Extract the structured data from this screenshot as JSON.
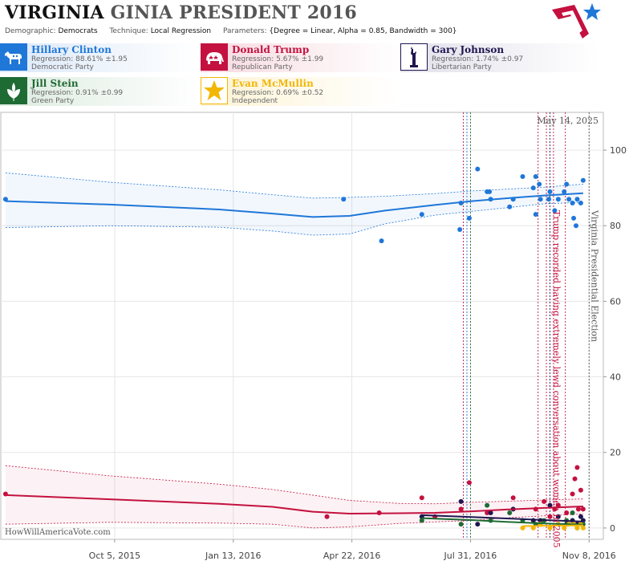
{
  "header": {
    "title_part1": "VIRGINIA",
    "title_part2": "GINIA PRESIDENT 2016",
    "demographic_label": "Demographic:",
    "demographic_value": "Democrats",
    "technique_label": "Technique:",
    "technique_value": "Local Regression",
    "parameters_label": "Parameters:",
    "parameters_value": "{Degree = Linear, Alpha = 0.85, Bandwidth = 300}"
  },
  "candidates": [
    {
      "name": "Hillary Clinton",
      "regression": "Regression: 88.61% ±1.95",
      "party": "Democratic Party",
      "color": "#1f77d8",
      "bg": "#dbe8f8",
      "icon": "donkey-icon"
    },
    {
      "name": "Donald Trump",
      "regression": "Regression: 5.67% ±1.99",
      "party": "Republican Party",
      "color": "#c4113f",
      "bg": "#f6d9e0",
      "icon": "elephant-icon"
    },
    {
      "name": "Gary Johnson",
      "regression": "Regression: 1.74% ±0.97",
      "party": "Libertarian Party",
      "color": "#1f1650",
      "bg": "#e2e0ea",
      "icon": "liberty-statue-icon"
    },
    {
      "name": "Jill Stein",
      "regression": "Regression: 0.91% ±0.99",
      "party": "Green Party",
      "color": "#1e6b34",
      "bg": "#dcebdf",
      "icon": "leaf-icon"
    },
    {
      "name": "Evan McMullin",
      "regression": "Regression: 0.69% ±0.52",
      "party": "Independent",
      "color": "#f2b705",
      "bg": "#fdf3d4",
      "icon": "star-icon"
    }
  ],
  "chart_data": {
    "type": "scatter",
    "date_label": "May 14, 2025",
    "watermark": "HowWillAmericaVote.com",
    "x_ticks": [
      "Oct 5, 2015",
      "Jan 13, 2016",
      "Apr 22, 2016",
      "Jul 31, 2016",
      "Nov 8, 2016"
    ],
    "xlim": [
      "2015-07-01",
      "2016-11-20"
    ],
    "y_ticks": [
      0,
      20,
      40,
      60,
      80,
      100
    ],
    "ylim": [
      -3,
      110
    ],
    "grid": true,
    "annotations": [
      {
        "date": "2016-10-07",
        "text": "Trump recorded having extremely lewd conversation about women in 2005",
        "color": "#c4113f"
      },
      {
        "date": "2016-11-08",
        "text": "Virginia Presidential Election",
        "color": "#555555"
      }
    ],
    "event_lines": [
      {
        "date": "2016-07-25",
        "color": "#c4113f"
      },
      {
        "date": "2016-07-28",
        "color": "#1f77d8"
      },
      {
        "date": "2016-07-31",
        "color": "#1e6b34"
      },
      {
        "date": "2016-09-26",
        "color": "#c4113f"
      },
      {
        "date": "2016-10-03",
        "color": "#c4113f"
      },
      {
        "date": "2016-10-06",
        "color": "#1f1650"
      },
      {
        "date": "2016-10-09",
        "color": "#c4113f"
      },
      {
        "date": "2016-10-19",
        "color": "#c4113f"
      },
      {
        "date": "2016-11-08",
        "color": "#555555"
      }
    ],
    "series": [
      {
        "name": "Hillary Clinton",
        "color": "#1f77d8",
        "points": [
          [
            "2015-07-05",
            87
          ],
          [
            "2016-04-15",
            87
          ],
          [
            "2016-05-17",
            76
          ],
          [
            "2016-06-20",
            83
          ],
          [
            "2016-07-22",
            79
          ],
          [
            "2016-07-23",
            86
          ],
          [
            "2016-07-30",
            82
          ],
          [
            "2016-08-06",
            95
          ],
          [
            "2016-08-14",
            89
          ],
          [
            "2016-08-16",
            89
          ],
          [
            "2016-08-17",
            87
          ],
          [
            "2016-09-02",
            85
          ],
          [
            "2016-09-05",
            87
          ],
          [
            "2016-09-13",
            93
          ],
          [
            "2016-09-22",
            90
          ],
          [
            "2016-09-24",
            93
          ],
          [
            "2016-09-24",
            83
          ],
          [
            "2016-09-27",
            91
          ],
          [
            "2016-09-28",
            87
          ],
          [
            "2016-10-05",
            87
          ],
          [
            "2016-10-06",
            89
          ],
          [
            "2016-10-10",
            84
          ],
          [
            "2016-10-13",
            87
          ],
          [
            "2016-10-18",
            89
          ],
          [
            "2016-10-20",
            91
          ],
          [
            "2016-10-22",
            87
          ],
          [
            "2016-10-25",
            86
          ],
          [
            "2016-10-26",
            82
          ],
          [
            "2016-10-28",
            80
          ],
          [
            "2016-10-29",
            87
          ],
          [
            "2016-11-01",
            86
          ],
          [
            "2016-11-03",
            92
          ]
        ],
        "trend": [
          [
            "2015-07-05",
            86.5
          ],
          [
            "2015-10-01",
            85.6
          ],
          [
            "2016-01-01",
            84.3
          ],
          [
            "2016-02-15",
            83.2
          ],
          [
            "2016-03-20",
            82.3
          ],
          [
            "2016-04-20",
            82.6
          ],
          [
            "2016-05-20",
            84
          ],
          [
            "2016-07-01",
            85.5
          ],
          [
            "2016-08-01",
            86.5
          ],
          [
            "2016-09-01",
            87.3
          ],
          [
            "2016-10-01",
            88
          ],
          [
            "2016-11-03",
            88.6
          ]
        ],
        "upper": [
          [
            "2015-07-05",
            94
          ],
          [
            "2015-10-01",
            91.5
          ],
          [
            "2016-01-01",
            89.5
          ],
          [
            "2016-02-15",
            88.2
          ],
          [
            "2016-03-20",
            87.3
          ],
          [
            "2016-04-20",
            87.5
          ],
          [
            "2016-05-20",
            87.8
          ],
          [
            "2016-07-01",
            88.5
          ],
          [
            "2016-08-01",
            89.2
          ],
          [
            "2016-09-01",
            89.7
          ],
          [
            "2016-10-01",
            90.2
          ],
          [
            "2016-11-03",
            91
          ]
        ],
        "lower": [
          [
            "2015-07-05",
            79.5
          ],
          [
            "2015-10-01",
            80
          ],
          [
            "2016-01-01",
            79.6
          ],
          [
            "2016-02-15",
            78.6
          ],
          [
            "2016-03-20",
            77.5
          ],
          [
            "2016-04-20",
            77.8
          ],
          [
            "2016-05-20",
            80.5
          ],
          [
            "2016-07-01",
            82.8
          ],
          [
            "2016-08-01",
            83.8
          ],
          [
            "2016-09-01",
            84.8
          ],
          [
            "2016-10-01",
            85.8
          ],
          [
            "2016-11-03",
            86.2
          ]
        ]
      },
      {
        "name": "Donald Trump",
        "color": "#c4113f",
        "points": [
          [
            "2015-07-05",
            9
          ],
          [
            "2016-04-01",
            3
          ],
          [
            "2016-05-15",
            4
          ],
          [
            "2016-06-20",
            8
          ],
          [
            "2016-07-01",
            3
          ],
          [
            "2016-07-23",
            5
          ],
          [
            "2016-07-30",
            12
          ],
          [
            "2016-08-14",
            4
          ],
          [
            "2016-09-05",
            8
          ],
          [
            "2016-09-24",
            5
          ],
          [
            "2016-10-01",
            7
          ],
          [
            "2016-10-06",
            3
          ],
          [
            "2016-10-10",
            5
          ],
          [
            "2016-10-13",
            6
          ],
          [
            "2016-10-20",
            4
          ],
          [
            "2016-10-25",
            9
          ],
          [
            "2016-10-27",
            13
          ],
          [
            "2016-10-29",
            16
          ],
          [
            "2016-10-30",
            5
          ],
          [
            "2016-11-01",
            10
          ],
          [
            "2016-11-03",
            5
          ]
        ],
        "trend": [
          [
            "2015-07-05",
            8.7
          ],
          [
            "2015-10-01",
            7.6
          ],
          [
            "2016-01-01",
            6.4
          ],
          [
            "2016-02-15",
            5.6
          ],
          [
            "2016-03-20",
            4.3
          ],
          [
            "2016-04-20",
            3.8
          ],
          [
            "2016-06-01",
            3.9
          ],
          [
            "2016-07-01",
            4
          ],
          [
            "2016-08-01",
            4.4
          ],
          [
            "2016-09-01",
            4.9
          ],
          [
            "2016-10-01",
            5.3
          ],
          [
            "2016-11-03",
            5.7
          ]
        ],
        "upper": [
          [
            "2015-07-05",
            16.5
          ],
          [
            "2015-10-01",
            13.8
          ],
          [
            "2016-01-01",
            11.6
          ],
          [
            "2016-02-15",
            10.2
          ],
          [
            "2016-03-20",
            8.7
          ],
          [
            "2016-04-20",
            7.3
          ],
          [
            "2016-06-01",
            6.5
          ],
          [
            "2016-07-01",
            6.4
          ],
          [
            "2016-08-01",
            6.8
          ],
          [
            "2016-09-01",
            7.1
          ],
          [
            "2016-10-01",
            7.4
          ],
          [
            "2016-11-03",
            7.7
          ]
        ],
        "lower": [
          [
            "2015-07-05",
            1
          ],
          [
            "2015-10-01",
            1.5
          ],
          [
            "2016-01-01",
            1.3
          ],
          [
            "2016-02-15",
            1
          ],
          [
            "2016-03-20",
            0
          ],
          [
            "2016-04-20",
            0.3
          ],
          [
            "2016-06-01",
            1.2
          ],
          [
            "2016-07-01",
            1.6
          ],
          [
            "2016-08-01",
            2
          ],
          [
            "2016-09-01",
            2.7
          ],
          [
            "2016-10-01",
            3.2
          ],
          [
            "2016-11-03",
            3.7
          ]
        ]
      },
      {
        "name": "Gary Johnson",
        "color": "#1f1650",
        "points": [
          [
            "2016-06-20",
            3
          ],
          [
            "2016-07-23",
            7
          ],
          [
            "2016-08-06",
            1
          ],
          [
            "2016-08-17",
            4
          ],
          [
            "2016-09-05",
            5
          ],
          [
            "2016-09-22",
            2
          ],
          [
            "2016-09-28",
            2
          ],
          [
            "2016-10-06",
            6
          ],
          [
            "2016-10-13",
            3
          ],
          [
            "2016-10-20",
            1
          ],
          [
            "2016-10-25",
            2
          ],
          [
            "2016-10-29",
            1
          ],
          [
            "2016-11-01",
            3
          ],
          [
            "2016-11-03",
            2
          ]
        ],
        "trend": [
          [
            "2016-06-20",
            3.4
          ],
          [
            "2016-08-01",
            2.9
          ],
          [
            "2016-09-01",
            2.5
          ],
          [
            "2016-10-01",
            2.1
          ],
          [
            "2016-11-03",
            1.7
          ]
        ]
      },
      {
        "name": "Jill Stein",
        "color": "#1e6b34",
        "points": [
          [
            "2016-06-20",
            2
          ],
          [
            "2016-07-23",
            1
          ],
          [
            "2016-08-14",
            6
          ],
          [
            "2016-08-17",
            2
          ],
          [
            "2016-09-02",
            4
          ],
          [
            "2016-09-13",
            2
          ],
          [
            "2016-09-24",
            1
          ],
          [
            "2016-10-01",
            2
          ],
          [
            "2016-10-13",
            1
          ],
          [
            "2016-10-20",
            2
          ],
          [
            "2016-10-25",
            4
          ],
          [
            "2016-10-29",
            0
          ],
          [
            "2016-11-03",
            1
          ]
        ],
        "trend": [
          [
            "2016-06-20",
            2.6
          ],
          [
            "2016-08-01",
            2.1
          ],
          [
            "2016-09-01",
            1.6
          ],
          [
            "2016-10-01",
            1.2
          ],
          [
            "2016-11-03",
            0.9
          ]
        ]
      },
      {
        "name": "Evan McMullin",
        "color": "#f2b705",
        "points": [
          [
            "2016-09-13",
            0
          ],
          [
            "2016-09-22",
            0
          ],
          [
            "2016-09-28",
            1
          ],
          [
            "2016-10-06",
            0
          ],
          [
            "2016-10-13",
            1
          ],
          [
            "2016-10-18",
            0
          ],
          [
            "2016-10-22",
            1
          ],
          [
            "2016-10-26",
            1
          ],
          [
            "2016-10-29",
            0
          ],
          [
            "2016-11-01",
            1
          ],
          [
            "2016-11-03",
            0
          ]
        ],
        "trend": [
          [
            "2016-09-13",
            0.5
          ],
          [
            "2016-10-10",
            0.6
          ],
          [
            "2016-11-03",
            0.7
          ]
        ]
      }
    ]
  }
}
